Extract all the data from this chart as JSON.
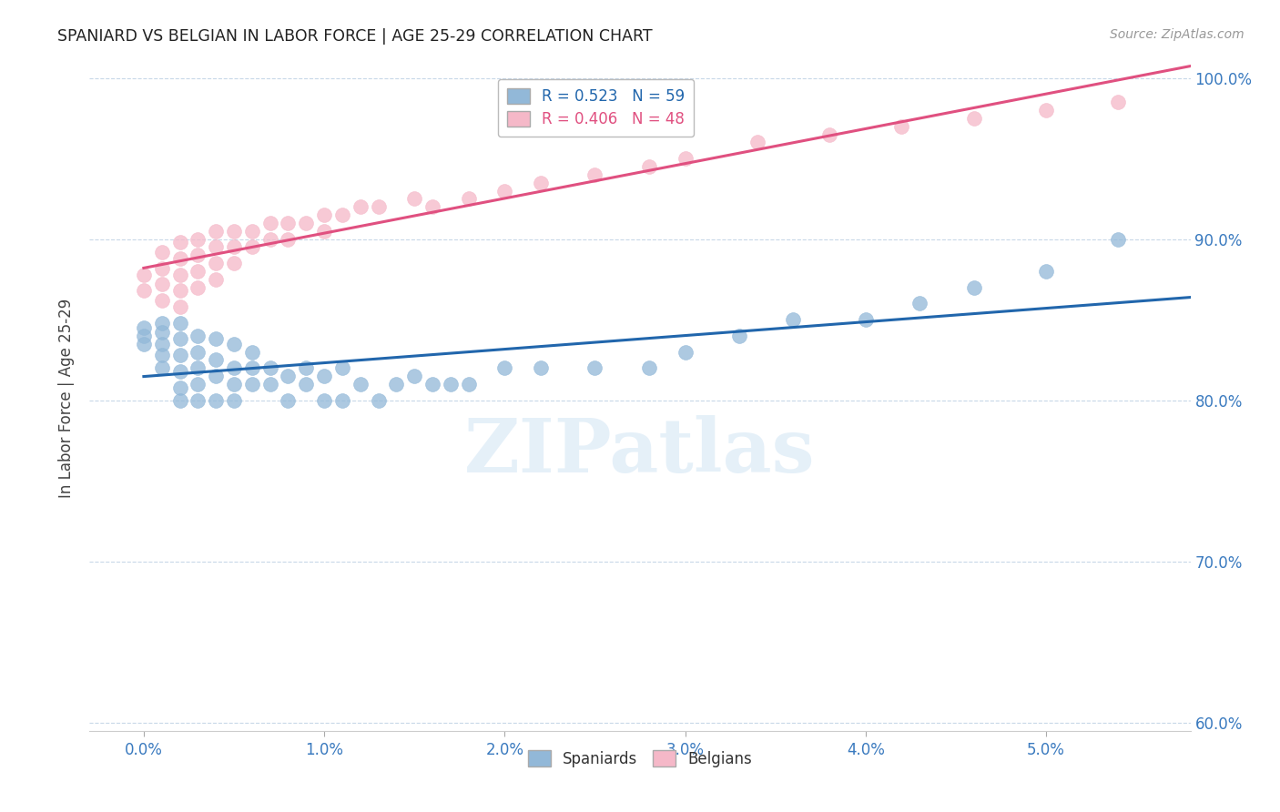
{
  "title": "SPANIARD VS BELGIAN IN LABOR FORCE | AGE 25-29 CORRELATION CHART",
  "source": "Source: ZipAtlas.com",
  "ylabel": "In Labor Force | Age 25-29",
  "watermark": "ZIPatlas",
  "legend_blue_label": "Spaniards",
  "legend_pink_label": "Belgians",
  "blue_R": 0.523,
  "blue_N": 59,
  "pink_R": 0.406,
  "pink_N": 48,
  "blue_color": "#92b8d8",
  "pink_color": "#f5b8c8",
  "blue_line_color": "#2166ac",
  "pink_line_color": "#e05080",
  "xlim": [
    -0.003,
    0.058
  ],
  "ylim": [
    0.595,
    1.008
  ],
  "yticks": [
    0.6,
    0.7,
    0.8,
    0.9,
    1.0
  ],
  "xticks": [
    0.0,
    0.01,
    0.02,
    0.03,
    0.04,
    0.05
  ],
  "blue_x": [
    0.0,
    0.0,
    0.0,
    0.001,
    0.001,
    0.001,
    0.001,
    0.001,
    0.002,
    0.002,
    0.002,
    0.002,
    0.002,
    0.002,
    0.003,
    0.003,
    0.003,
    0.003,
    0.003,
    0.004,
    0.004,
    0.004,
    0.004,
    0.005,
    0.005,
    0.005,
    0.005,
    0.006,
    0.006,
    0.006,
    0.007,
    0.007,
    0.008,
    0.008,
    0.009,
    0.009,
    0.01,
    0.01,
    0.011,
    0.011,
    0.012,
    0.013,
    0.014,
    0.015,
    0.016,
    0.017,
    0.018,
    0.02,
    0.022,
    0.025,
    0.028,
    0.03,
    0.033,
    0.036,
    0.04,
    0.043,
    0.046,
    0.05,
    0.054
  ],
  "blue_y": [
    0.845,
    0.84,
    0.835,
    0.848,
    0.842,
    0.835,
    0.828,
    0.82,
    0.848,
    0.838,
    0.828,
    0.818,
    0.808,
    0.8,
    0.84,
    0.83,
    0.82,
    0.81,
    0.8,
    0.838,
    0.825,
    0.815,
    0.8,
    0.835,
    0.82,
    0.81,
    0.8,
    0.83,
    0.82,
    0.81,
    0.82,
    0.81,
    0.815,
    0.8,
    0.82,
    0.81,
    0.815,
    0.8,
    0.82,
    0.8,
    0.81,
    0.8,
    0.81,
    0.815,
    0.81,
    0.81,
    0.81,
    0.82,
    0.82,
    0.82,
    0.82,
    0.83,
    0.84,
    0.85,
    0.85,
    0.86,
    0.87,
    0.88,
    0.9
  ],
  "pink_x": [
    0.0,
    0.0,
    0.001,
    0.001,
    0.001,
    0.001,
    0.002,
    0.002,
    0.002,
    0.002,
    0.002,
    0.003,
    0.003,
    0.003,
    0.003,
    0.004,
    0.004,
    0.004,
    0.004,
    0.005,
    0.005,
    0.005,
    0.006,
    0.006,
    0.007,
    0.007,
    0.008,
    0.008,
    0.009,
    0.01,
    0.01,
    0.011,
    0.012,
    0.013,
    0.015,
    0.016,
    0.018,
    0.02,
    0.022,
    0.025,
    0.028,
    0.03,
    0.034,
    0.038,
    0.042,
    0.046,
    0.05,
    0.054
  ],
  "pink_y": [
    0.878,
    0.868,
    0.892,
    0.882,
    0.872,
    0.862,
    0.898,
    0.888,
    0.878,
    0.868,
    0.858,
    0.9,
    0.89,
    0.88,
    0.87,
    0.905,
    0.895,
    0.885,
    0.875,
    0.905,
    0.895,
    0.885,
    0.905,
    0.895,
    0.91,
    0.9,
    0.91,
    0.9,
    0.91,
    0.915,
    0.905,
    0.915,
    0.92,
    0.92,
    0.925,
    0.92,
    0.925,
    0.93,
    0.935,
    0.94,
    0.945,
    0.95,
    0.96,
    0.965,
    0.97,
    0.975,
    0.98,
    0.985
  ]
}
